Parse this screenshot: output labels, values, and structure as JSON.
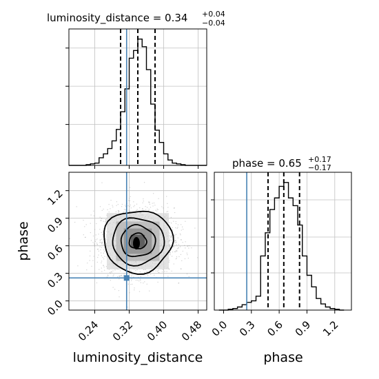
{
  "chart_data": {
    "type": "corner",
    "parameters": [
      "luminosity_distance",
      "phase"
    ],
    "colors": {
      "truth": "#4682b4",
      "hist": "#000000",
      "grid": "#c0c0c0",
      "scatter": "#9a9a9a"
    },
    "panels": [
      {
        "id": "luminosity_distance_hist",
        "type": "histogram",
        "title": "luminosity_distance = 0.34",
        "title_main": "luminosity_distance = 0.34",
        "title_plus": "+0.04",
        "title_minus": "−0.04",
        "xlim": [
          0.18,
          0.5
        ],
        "bins_edges": [
          0.18,
          0.19,
          0.2,
          0.21,
          0.22,
          0.23,
          0.24,
          0.25,
          0.26,
          0.27,
          0.28,
          0.29,
          0.3,
          0.31,
          0.32,
          0.33,
          0.34,
          0.35,
          0.36,
          0.37,
          0.38,
          0.39,
          0.4,
          0.41,
          0.42,
          0.43,
          0.44,
          0.45,
          0.46,
          0.47,
          0.48,
          0.49,
          0.5
        ],
        "counts": [
          0,
          0,
          0,
          0,
          1,
          2,
          3,
          10,
          15,
          22,
          32,
          47,
          70,
          100,
          140,
          150,
          165,
          155,
          125,
          80,
          46,
          30,
          15,
          7,
          3,
          2,
          1,
          0,
          0,
          0,
          0,
          0
        ],
        "quantiles": [
          0.3,
          0.34,
          0.38
        ],
        "truth": 0.314
      },
      {
        "id": "phase_hist",
        "type": "histogram",
        "title": "phase = 0.65",
        "title_main": "phase = 0.65",
        "title_plus": "+0.17",
        "title_minus": "−0.17",
        "xlim": [
          -0.1,
          1.38
        ],
        "xticks": [
          "0.0",
          "0.3",
          "0.6",
          "0.9",
          "1.2"
        ],
        "xlabel": "phase",
        "bins_edges": [
          -0.05,
          0.0,
          0.05,
          0.1,
          0.15,
          0.2,
          0.25,
          0.3,
          0.35,
          0.4,
          0.45,
          0.5,
          0.55,
          0.6,
          0.65,
          0.7,
          0.75,
          0.8,
          0.85,
          0.9,
          0.95,
          1.0,
          1.05,
          1.1,
          1.15,
          1.2,
          1.25,
          1.3
        ],
        "counts": [
          0,
          0,
          1,
          2,
          4,
          7,
          10,
          12,
          18,
          70,
          100,
          130,
          145,
          160,
          165,
          145,
          135,
          110,
          70,
          45,
          30,
          15,
          8,
          4,
          2,
          1,
          0
        ],
        "quantiles": [
          0.48,
          0.65,
          0.82
        ],
        "truth": 0.25
      },
      {
        "id": "joint",
        "type": "scatter_contour",
        "xlim": [
          0.18,
          0.5
        ],
        "ylim": [
          -0.1,
          1.4
        ],
        "xticks": [
          "0.24",
          "0.32",
          "0.40",
          "0.48"
        ],
        "yticks": [
          "0.0",
          "0.3",
          "0.6",
          "0.9",
          "1.2"
        ],
        "xlabel": "luminosity_distance",
        "ylabel": "phase",
        "center": [
          0.34,
          0.65
        ],
        "spread": [
          0.04,
          0.17
        ],
        "contour_levels_sigma": [
          0.5,
          1.0,
          1.5,
          2.0
        ],
        "truth": [
          0.314,
          0.25
        ]
      }
    ]
  }
}
